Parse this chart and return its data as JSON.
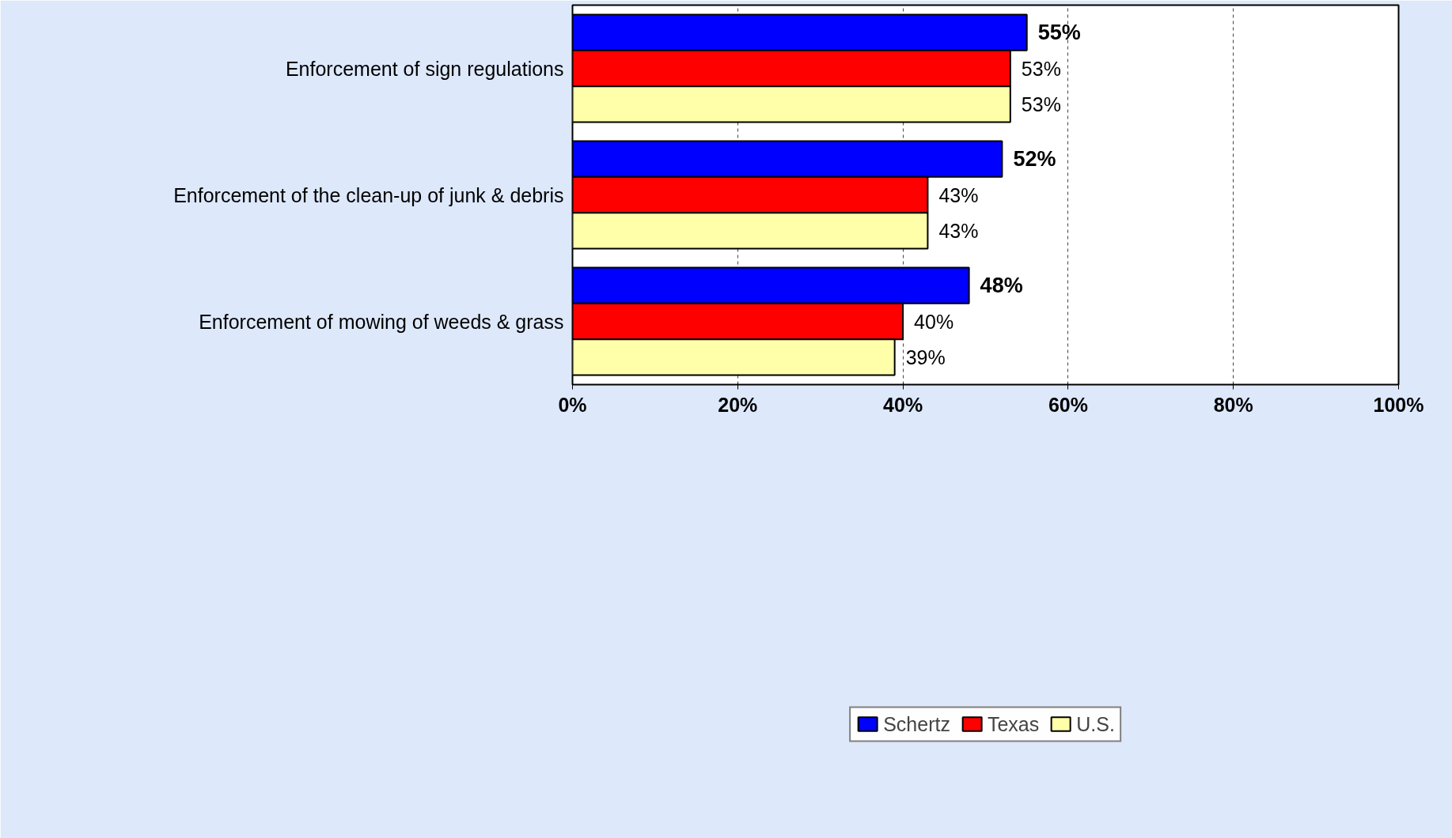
{
  "chart_data": {
    "type": "bar",
    "orientation": "horizontal",
    "categories": [
      "Enforcement of sign regulations",
      "Enforcement of the clean-up of junk & debris",
      "Enforcement of mowing of weeds & grass"
    ],
    "series": [
      {
        "name": "Schertz",
        "color": "#0000ff",
        "values": [
          55,
          52,
          48
        ],
        "value_labels": [
          "55%",
          "52%",
          "48%"
        ]
      },
      {
        "name": "Texas",
        "color": "#ff0000",
        "values": [
          53,
          43,
          40
        ],
        "value_labels": [
          "53%",
          "43%",
          "40%"
        ]
      },
      {
        "name": "U.S.",
        "color": "#ffffaa",
        "values": [
          53,
          43,
          39
        ],
        "value_labels": [
          "53%",
          "43%",
          "39%"
        ]
      }
    ],
    "xlim": [
      0,
      100
    ],
    "xticks": [
      {
        "value": 0,
        "label": "0%"
      },
      {
        "value": 20,
        "label": "20%"
      },
      {
        "value": 40,
        "label": "40%"
      },
      {
        "value": 60,
        "label": "60%"
      },
      {
        "value": 80,
        "label": "80%"
      },
      {
        "value": 100,
        "label": "100%"
      }
    ],
    "grid": "x",
    "legend": "bottom"
  }
}
